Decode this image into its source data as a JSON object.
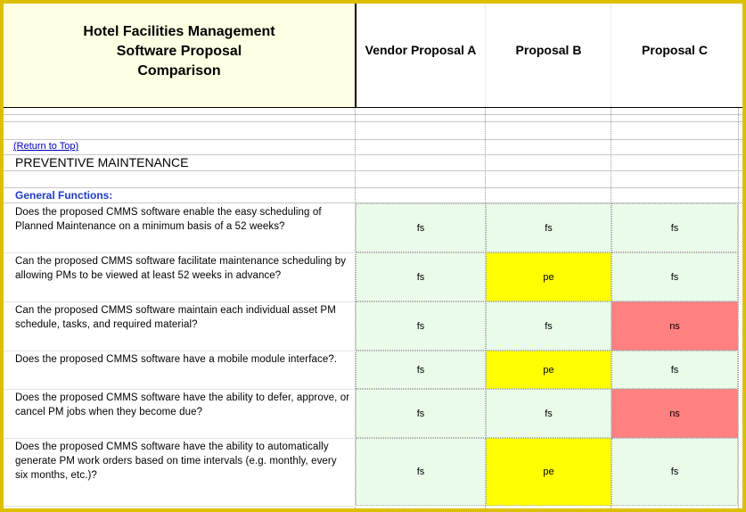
{
  "header": {
    "title_lines": [
      "Hotel Facilities Management",
      "Software Proposal",
      "Comparison"
    ],
    "columns": [
      "Vendor Proposal A",
      "Proposal B",
      "Proposal C"
    ]
  },
  "link": "(Return to Top)",
  "section": "PREVENTIVE MAINTENANCE",
  "subsection": "General Functions:",
  "status_colors": {
    "fs": "#eafbea",
    "pe": "#ffff00",
    "ns": "#ff8080"
  },
  "rows": [
    {
      "question": "Does the proposed CMMS software enable the easy scheduling of Planned Maintenance on a minimum basis of a 52 weeks?",
      "ratings": [
        "fs",
        "fs",
        "fs"
      ]
    },
    {
      "question": "Can the proposed CMMS software facilitate maintenance scheduling by allowing PMs to be viewed at least 52 weeks in advance?",
      "ratings": [
        "fs",
        "pe",
        "fs"
      ]
    },
    {
      "question": "Can the proposed CMMS software maintain each individual asset PM schedule, tasks, and required material?",
      "ratings": [
        "fs",
        "fs",
        "ns"
      ]
    },
    {
      "question": "Does the proposed CMMS software have a mobile module interface?.",
      "ratings": [
        "fs",
        "pe",
        "fs"
      ]
    },
    {
      "question": "Does the proposed CMMS software have the ability to defer, approve, or cancel PM jobs when they become due?",
      "ratings": [
        "fs",
        "fs",
        "ns"
      ]
    },
    {
      "question": "Does the proposed CMMS software have the ability to automatically generate PM work orders based on time intervals (e.g. monthly, every six months, etc.)?",
      "ratings": [
        "fs",
        "pe",
        "fs"
      ]
    }
  ]
}
